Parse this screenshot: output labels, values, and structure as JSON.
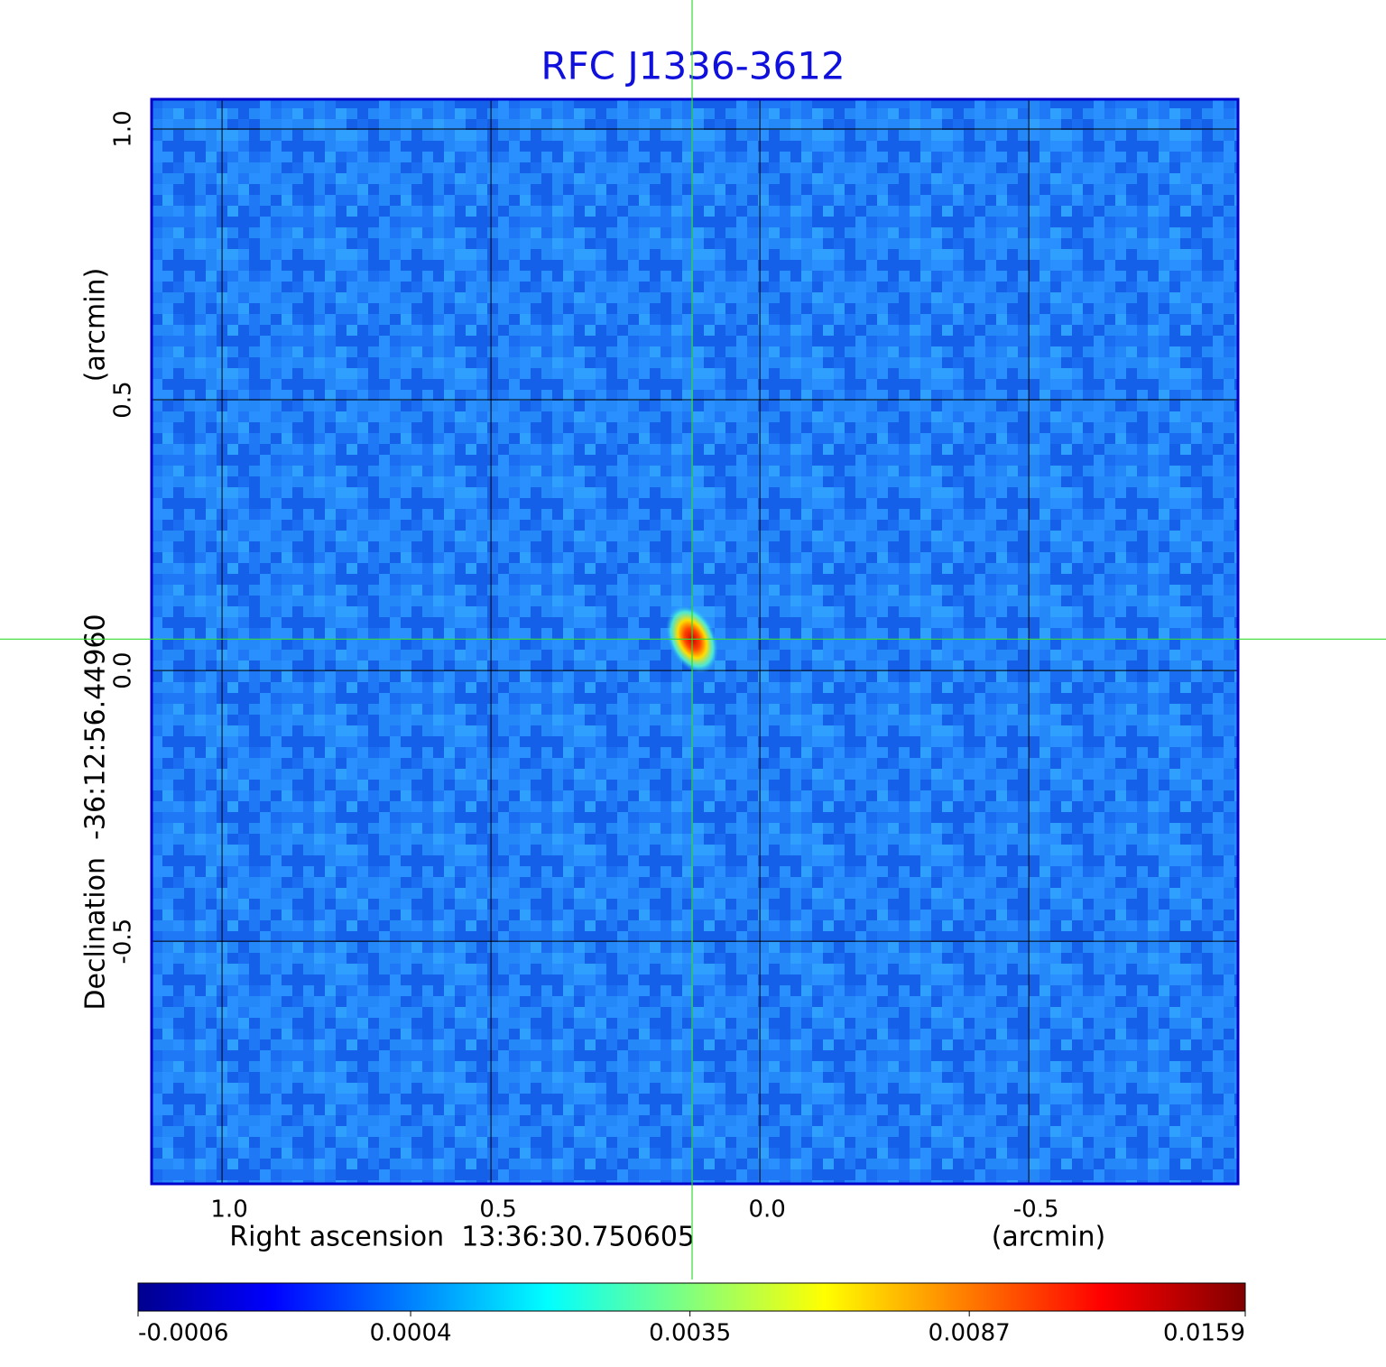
{
  "chart_data": {
    "type": "image",
    "title": "RFC J1336-3612",
    "x_label": "Right ascension  13:36:30.750605",
    "x_unit": "(arcmin)",
    "y_label": "Declination  -36:12:56.44960",
    "y_unit": "(arcmin)",
    "xlim": [
      1.131,
      -0.889
    ],
    "ylim": [
      -0.948,
      1.055
    ],
    "xticks": [
      {
        "value": 1,
        "label": "1.0"
      },
      0.5,
      {
        "value": 0,
        "label": "0.0"
      },
      -0.5
    ],
    "yticks": [
      {
        "value": 1,
        "label": "1.0"
      },
      0.5,
      {
        "value": 0,
        "label": "0.0"
      },
      -0.5
    ],
    "grid": true,
    "grid_color": "#000000",
    "crosshair": {
      "x": 0.126,
      "y": 0.058,
      "color": "#33dd33"
    },
    "peak": {
      "x": 0.126,
      "y": 0.058,
      "value": 0.0159
    },
    "colorbar": {
      "lim": [
        -0.0006,
        0.0159
      ],
      "scale": "sqrt",
      "colormap": "jet",
      "ticks": [
        -0.0006,
        0.0004,
        0.0035,
        0.0087,
        0.0159
      ]
    }
  }
}
